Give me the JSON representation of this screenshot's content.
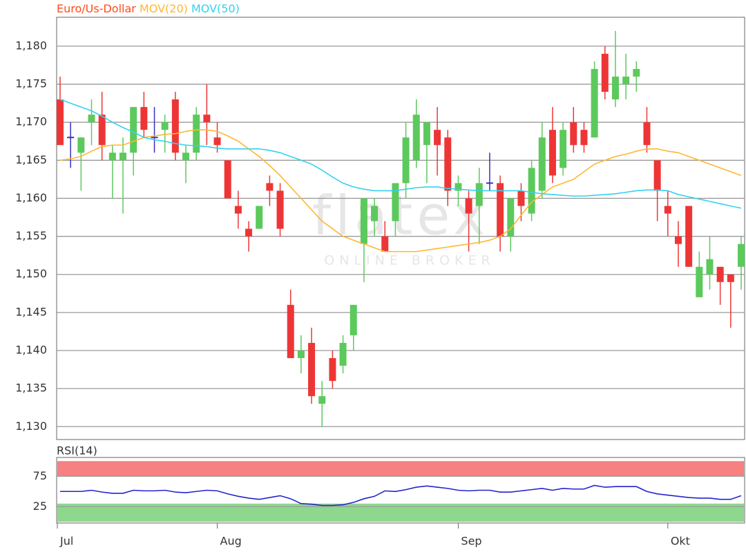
{
  "chart_data": [
    {
      "type": "candlestick",
      "name": "Euro/Us-Dollar",
      "color": "#ff4a1a",
      "up_color": "#5cc95c",
      "down_color": "#ee3535",
      "doji_color": "#3a2fbf",
      "watermark": [
        "flatex",
        "ONLINE BROKER"
      ],
      "categories": [
        "Jul",
        null,
        null,
        null,
        null,
        null,
        null,
        null,
        null,
        null,
        null,
        null,
        null,
        null,
        null,
        "Aug",
        null,
        null,
        null,
        null,
        null,
        null,
        null,
        null,
        null,
        null,
        null,
        null,
        null,
        null,
        null,
        null,
        null,
        null,
        null,
        null,
        null,
        null,
        "Sep",
        null,
        null,
        null,
        null,
        null,
        null,
        null,
        null,
        null,
        null,
        null,
        null,
        null,
        null,
        null,
        null,
        null,
        null,
        null,
        "Okt",
        null,
        null,
        null,
        null,
        null,
        null,
        null
      ],
      "open": [
        1.173,
        1.168,
        1.166,
        1.17,
        1.171,
        1.165,
        1.165,
        1.166,
        1.172,
        1.168,
        1.169,
        1.173,
        1.165,
        1.166,
        1.171,
        1.168,
        1.165,
        1.159,
        1.156,
        1.156,
        1.162,
        1.161,
        1.146,
        1.139,
        1.141,
        1.133,
        1.139,
        1.138,
        1.142,
        1.154,
        1.157,
        1.155,
        1.157,
        1.162,
        1.165,
        1.167,
        1.169,
        1.168,
        1.161,
        1.16,
        1.159,
        1.162,
        1.162,
        1.155,
        1.161,
        1.158,
        1.161,
        1.169,
        1.164,
        1.17,
        1.169,
        1.168,
        1.179,
        1.173,
        1.175,
        1.176,
        1.17,
        1.165,
        1.159,
        1.155,
        1.159,
        1.147,
        1.15,
        1.151,
        1.15,
        1.151
      ],
      "high": [
        1.176,
        1.17,
        1.168,
        1.173,
        1.174,
        1.167,
        1.168,
        1.172,
        1.174,
        1.172,
        1.171,
        1.174,
        1.167,
        1.172,
        1.175,
        1.17,
        1.165,
        1.161,
        1.157,
        1.159,
        1.163,
        1.162,
        1.148,
        1.142,
        1.143,
        1.136,
        1.14,
        1.142,
        1.146,
        1.16,
        1.16,
        1.157,
        1.162,
        1.17,
        1.173,
        1.17,
        1.172,
        1.169,
        1.163,
        1.161,
        1.164,
        1.166,
        1.163,
        1.16,
        1.162,
        1.165,
        1.17,
        1.172,
        1.17,
        1.172,
        1.17,
        1.178,
        1.18,
        1.182,
        1.179,
        1.178,
        1.172,
        1.165,
        1.161,
        1.157,
        1.159,
        1.153,
        1.155,
        1.151,
        1.15,
        1.155
      ],
      "low": [
        1.167,
        1.164,
        1.161,
        1.167,
        1.165,
        1.16,
        1.158,
        1.163,
        1.168,
        1.166,
        1.166,
        1.165,
        1.162,
        1.165,
        1.167,
        1.166,
        1.16,
        1.156,
        1.153,
        1.156,
        1.159,
        1.155,
        1.139,
        1.137,
        1.133,
        1.13,
        1.135,
        1.137,
        1.14,
        1.149,
        1.155,
        1.153,
        1.155,
        1.16,
        1.164,
        1.162,
        1.163,
        1.159,
        1.159,
        1.153,
        1.154,
        1.161,
        1.153,
        1.153,
        1.157,
        1.157,
        1.16,
        1.162,
        1.163,
        1.166,
        1.166,
        1.168,
        1.173,
        1.172,
        1.173,
        1.174,
        1.166,
        1.157,
        1.155,
        1.151,
        1.151,
        1.147,
        1.148,
        1.146,
        1.143,
        1.148
      ],
      "close": [
        1.167,
        1.168,
        1.168,
        1.171,
        1.167,
        1.166,
        1.166,
        1.172,
        1.169,
        1.168,
        1.17,
        1.166,
        1.166,
        1.171,
        1.17,
        1.167,
        1.16,
        1.158,
        1.155,
        1.159,
        1.161,
        1.156,
        1.139,
        1.14,
        1.134,
        1.134,
        1.136,
        1.141,
        1.146,
        1.16,
        1.159,
        1.153,
        1.162,
        1.168,
        1.171,
        1.17,
        1.167,
        1.161,
        1.162,
        1.158,
        1.162,
        1.162,
        1.155,
        1.16,
        1.159,
        1.164,
        1.168,
        1.163,
        1.169,
        1.167,
        1.167,
        1.177,
        1.174,
        1.176,
        1.176,
        1.177,
        1.167,
        1.161,
        1.158,
        1.154,
        1.151,
        1.151,
        1.152,
        1.149,
        1.149,
        1.154
      ],
      "overlays": [
        {
          "name": "MOV(20)",
          "color": "#ffb732",
          "values": [
            1.165,
            1.1652,
            1.1655,
            1.1662,
            1.1668,
            1.167,
            1.167,
            1.1675,
            1.168,
            1.1682,
            1.1684,
            1.1685,
            1.1688,
            1.169,
            1.169,
            1.1688,
            1.1682,
            1.1675,
            1.1665,
            1.1655,
            1.1643,
            1.163,
            1.1615,
            1.16,
            1.1585,
            1.157,
            1.156,
            1.155,
            1.1545,
            1.154,
            1.1535,
            1.153,
            1.153,
            1.153,
            1.153,
            1.1532,
            1.1534,
            1.1536,
            1.1538,
            1.154,
            1.1542,
            1.1545,
            1.155,
            1.156,
            1.1578,
            1.1595,
            1.1605,
            1.1615,
            1.162,
            1.1625,
            1.1635,
            1.1645,
            1.165,
            1.1655,
            1.1658,
            1.1662,
            1.1665,
            1.1665,
            1.1662,
            1.166,
            1.1655,
            1.165,
            1.1645,
            1.164,
            1.1635,
            1.163
          ]
        },
        {
          "name": "MOV(50)",
          "color": "#33d1f0",
          "values": [
            1.173,
            1.1725,
            1.172,
            1.1715,
            1.1708,
            1.17,
            1.1693,
            1.1687,
            1.168,
            1.1677,
            1.1675,
            1.1672,
            1.167,
            1.1669,
            1.1668,
            1.1666,
            1.1665,
            1.1665,
            1.1665,
            1.1665,
            1.1663,
            1.166,
            1.1655,
            1.165,
            1.1645,
            1.1637,
            1.1628,
            1.162,
            1.1615,
            1.1612,
            1.161,
            1.161,
            1.161,
            1.1612,
            1.1614,
            1.1615,
            1.1615,
            1.1613,
            1.1612,
            1.1611,
            1.161,
            1.161,
            1.161,
            1.161,
            1.161,
            1.1608,
            1.1606,
            1.1605,
            1.1604,
            1.1603,
            1.1603,
            1.1604,
            1.1605,
            1.1606,
            1.1608,
            1.161,
            1.1611,
            1.1611,
            1.161,
            1.1605,
            1.1602,
            1.1599,
            1.1596,
            1.1593,
            1.159,
            1.1587
          ]
        }
      ],
      "ylim": [
        1.1283,
        1.1838
      ],
      "yticks": [
        {
          "value": 1.13,
          "label": "1,130"
        },
        {
          "value": 1.135,
          "label": "1,135"
        },
        {
          "value": 1.14,
          "label": "1,140"
        },
        {
          "value": 1.145,
          "label": "1,145"
        },
        {
          "value": 1.15,
          "label": "1,150"
        },
        {
          "value": 1.155,
          "label": "1,155"
        },
        {
          "value": 1.16,
          "label": "1,160"
        },
        {
          "value": 1.165,
          "label": "1,165"
        },
        {
          "value": 1.17,
          "label": "1,170"
        },
        {
          "value": 1.175,
          "label": "1,175"
        },
        {
          "value": 1.18,
          "label": "1,180"
        }
      ],
      "grid": true
    },
    {
      "type": "line",
      "series": [
        {
          "name": "RSI(14)",
          "color": "#2222cc",
          "values": [
            50,
            50,
            50,
            52,
            49,
            47,
            47,
            52,
            51,
            51,
            52,
            49,
            48,
            50,
            52,
            51,
            46,
            42,
            39,
            37,
            40,
            43,
            38,
            30,
            29,
            27,
            27,
            28,
            32,
            38,
            42,
            51,
            50,
            53,
            57,
            59,
            57,
            55,
            52,
            51,
            52,
            52,
            49,
            49,
            51,
            53,
            55,
            52,
            55,
            54,
            54,
            60,
            57,
            58,
            58,
            58,
            50,
            46,
            44,
            42,
            40,
            39,
            39,
            37,
            37,
            43
          ]
        }
      ],
      "bands": [
        {
          "range": [
            75,
            100
          ],
          "color": "#f78080"
        },
        {
          "range": [
            0,
            30
          ],
          "color": "#8ed88e"
        }
      ],
      "ylim": [
        -2,
        106
      ],
      "yticks": [
        25,
        75
      ],
      "grid": true
    }
  ]
}
